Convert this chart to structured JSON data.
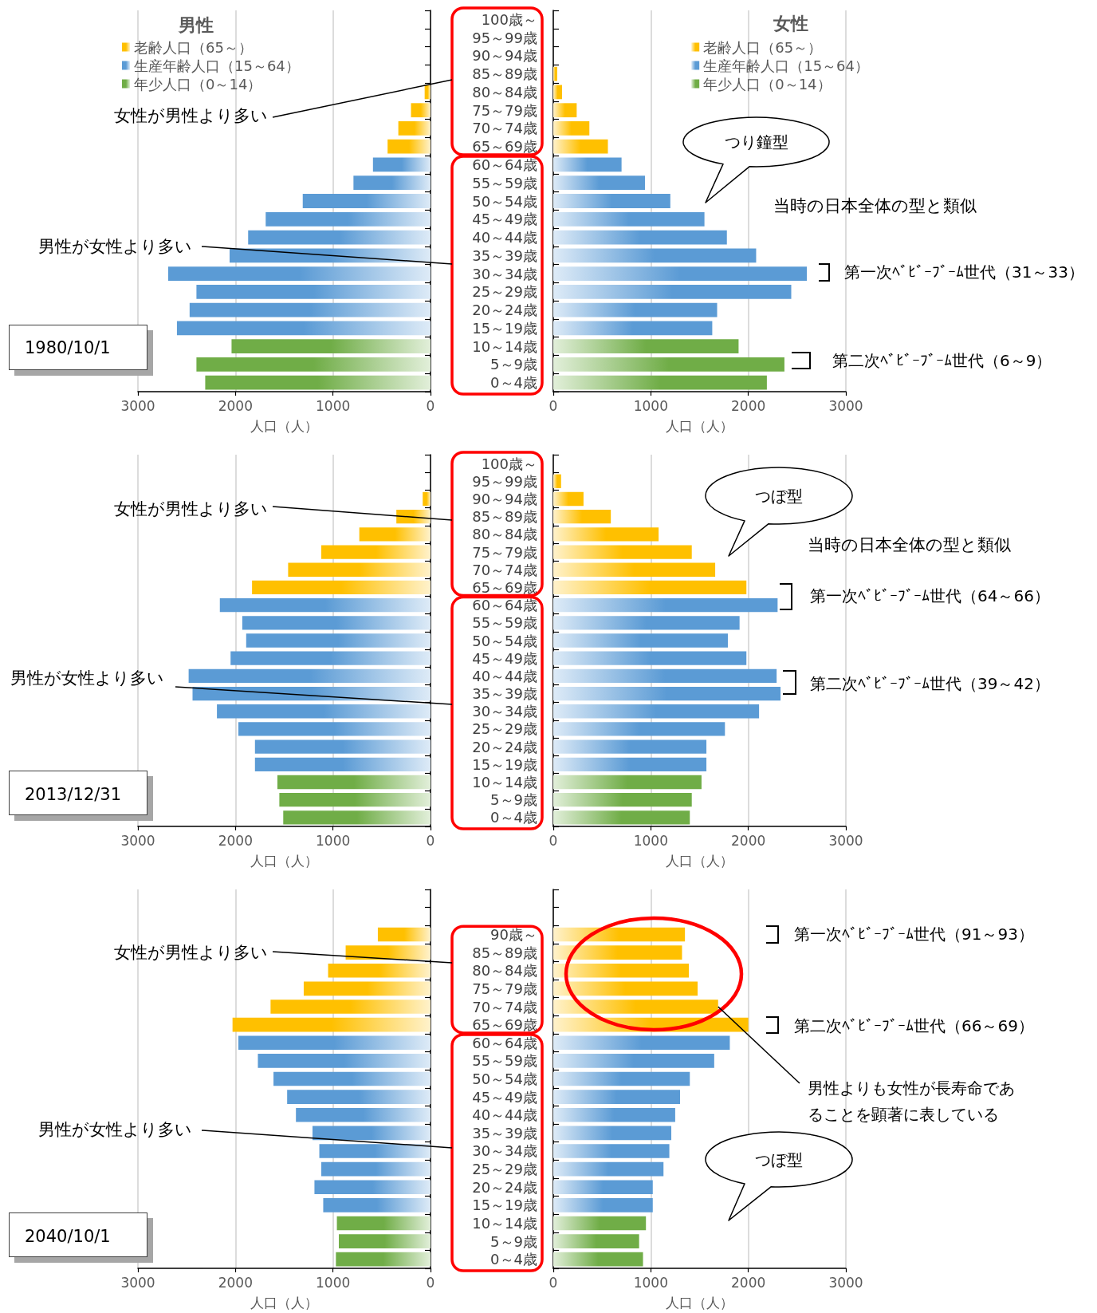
{
  "chart_data": [
    {
      "type": "bar",
      "orientation": "horizontal",
      "stacked": true,
      "title": "男性",
      "xlabel": "人口（人）",
      "xlim": [
        3000,
        0
      ],
      "xticks": [
        3000,
        2000,
        1000,
        0
      ],
      "grid": "x",
      "legend": "top left",
      "categories": [
        "100歳～",
        "95～99歳",
        "90～94歳",
        "85～89歳",
        "80～84歳",
        "75～79歳",
        "70～74歳",
        "65～69歳",
        "60～64歳",
        "55～59歳",
        "50～54歳",
        "45～49歳",
        "40～44歳",
        "35～39歳",
        "30～34歳",
        "25～29歳",
        "20～24歳",
        "15～19歳",
        "10～14歳",
        "5～9歳",
        "0～4歳"
      ],
      "series": [
        {
          "name": "老齢人口（65～）",
          "color": "#ffc000",
          "values": [
            null,
            null,
            null,
            null,
            60,
            200,
            330,
            440,
            null,
            null,
            null,
            null,
            null,
            null,
            null,
            null,
            null,
            null,
            null,
            null,
            null
          ]
        },
        {
          "name": "生産年齢人口（15～64）",
          "color": "#5b9bd5",
          "values": [
            null,
            null,
            null,
            null,
            null,
            null,
            null,
            null,
            590,
            790,
            1310,
            1690,
            1870,
            2060,
            2690,
            2400,
            2470,
            2600,
            null,
            null,
            null
          ]
        },
        {
          "name": "年少人口（0～14）",
          "color": "#70ad47",
          "values": [
            null,
            null,
            null,
            null,
            null,
            null,
            null,
            null,
            null,
            null,
            null,
            null,
            null,
            null,
            null,
            null,
            null,
            null,
            2040,
            2400,
            2310
          ]
        }
      ],
      "annotations": [
        "女性が男性より多い",
        "男性が女性より多い",
        "1980/10/1"
      ]
    },
    {
      "type": "bar",
      "orientation": "horizontal",
      "stacked": true,
      "title": "女性",
      "xlabel": "人口（人）",
      "xlim": [
        0,
        3000
      ],
      "xticks": [
        0,
        1000,
        2000,
        3000
      ],
      "grid": "x",
      "legend": "top right",
      "tick_labels": "x",
      "categories": [
        "100歳～",
        "95～99歳",
        "90～94歳",
        "85～89歳",
        "80～84歳",
        "75～79歳",
        "70～74歳",
        "65～69歳",
        "60～64歳",
        "55～59歳",
        "50～54歳",
        "45～49歳",
        "40～44歳",
        "35～39歳",
        "30～34歳",
        "25～29歳",
        "20～24歳",
        "15～19歳",
        "10～14歳",
        "5～9歳",
        "0～4歳"
      ],
      "series": [
        {
          "name": "老齢人口（65～）",
          "color": "#ffc000",
          "values": [
            null,
            null,
            null,
            40,
            90,
            240,
            370,
            560,
            null,
            null,
            null,
            null,
            null,
            null,
            null,
            null,
            null,
            null,
            null,
            null,
            null
          ]
        },
        {
          "name": "生産年齢人口（15～64）",
          "color": "#5b9bd5",
          "values": [
            null,
            null,
            null,
            null,
            null,
            null,
            null,
            null,
            700,
            940,
            1200,
            1550,
            1780,
            2080,
            2600,
            2440,
            1680,
            1630,
            null,
            null,
            null
          ]
        },
        {
          "name": "年少人口（0～14）",
          "color": "#70ad47",
          "values": [
            null,
            null,
            null,
            null,
            null,
            null,
            null,
            null,
            null,
            null,
            null,
            null,
            null,
            null,
            null,
            null,
            null,
            null,
            1900,
            2370,
            2190
          ]
        }
      ],
      "annotations": [
        "つり鐘型",
        "当時の日本全体の型と類似",
        "第一次ﾍﾞﾋﾞｰﾌﾞｰﾑ世代（31～33）",
        "第二次ﾍﾞﾋﾞｰﾌﾞｰﾑ世代（6～9）"
      ]
    },
    {
      "type": "bar",
      "orientation": "horizontal",
      "stacked": true,
      "xlabel": "人口（人）",
      "xlim": [
        3000,
        0
      ],
      "xticks": [
        3000,
        2000,
        1000,
        0
      ],
      "grid": "x",
      "categories": [
        "100歳～",
        "95～99歳",
        "90～94歳",
        "85～89歳",
        "80～84歳",
        "75～79歳",
        "70～74歳",
        "65～69歳",
        "60～64歳",
        "55～59歳",
        "50～54歳",
        "45～49歳",
        "40～44歳",
        "35～39歳",
        "30～34歳",
        "25～29歳",
        "20～24歳",
        "15～19歳",
        "10～14歳",
        "5～9歳",
        "0～4歳"
      ],
      "series": [
        {
          "color": "#ffc000",
          "values": [
            null,
            null,
            80,
            350,
            730,
            1120,
            1460,
            1830,
            null,
            null,
            null,
            null,
            null,
            null,
            null,
            null,
            null,
            null,
            null,
            null,
            null
          ]
        },
        {
          "color": "#5b9bd5",
          "values": [
            null,
            null,
            null,
            null,
            null,
            null,
            null,
            null,
            2160,
            1930,
            1890,
            2050,
            2480,
            2440,
            2190,
            1970,
            1800,
            1800,
            null,
            null,
            null
          ]
        },
        {
          "color": "#70ad47",
          "values": [
            null,
            null,
            null,
            null,
            null,
            null,
            null,
            null,
            null,
            null,
            null,
            null,
            null,
            null,
            null,
            null,
            null,
            null,
            1570,
            1550,
            1510
          ]
        }
      ],
      "annotations": [
        "女性が男性より多い",
        "男性が女性より多い",
        "2013/12/31"
      ]
    },
    {
      "type": "bar",
      "orientation": "horizontal",
      "stacked": true,
      "xlabel": "人口（人）",
      "xlim": [
        0,
        3000
      ],
      "xticks": [
        0,
        1000,
        2000,
        3000
      ],
      "grid": "x",
      "tick_labels": "x",
      "categories": [
        "100歳～",
        "95～99歳",
        "90～94歳",
        "85～89歳",
        "80～84歳",
        "75～79歳",
        "70～74歳",
        "65～69歳",
        "60～64歳",
        "55～59歳",
        "50～54歳",
        "45～49歳",
        "40～44歳",
        "35～39歳",
        "30～34歳",
        "25～29歳",
        "20～24歳",
        "15～19歳",
        "10～14歳",
        "5～9歳",
        "0～4歳"
      ],
      "series": [
        {
          "color": "#ffc000",
          "values": [
            null,
            80,
            310,
            590,
            1080,
            1420,
            1660,
            1980,
            null,
            null,
            null,
            null,
            null,
            null,
            null,
            null,
            null,
            null,
            null,
            null,
            null
          ]
        },
        {
          "color": "#5b9bd5",
          "values": [
            null,
            null,
            null,
            null,
            null,
            null,
            null,
            null,
            2300,
            1910,
            1790,
            1980,
            2290,
            2330,
            2110,
            1760,
            1570,
            1570,
            null,
            null,
            null
          ]
        },
        {
          "color": "#70ad47",
          "values": [
            null,
            null,
            null,
            null,
            null,
            null,
            null,
            null,
            null,
            null,
            null,
            null,
            null,
            null,
            null,
            null,
            null,
            null,
            1520,
            1420,
            1400
          ]
        }
      ],
      "annotations": [
        "つぼ型",
        "当時の日本全体の型と類似",
        "第一次ﾍﾞﾋﾞｰﾌﾞｰﾑ世代（64～66）",
        "第二次ﾍﾞﾋﾞｰﾌﾞｰﾑ世代（39～42）"
      ]
    },
    {
      "type": "bar",
      "orientation": "horizontal",
      "stacked": true,
      "xlabel": "人口（人）",
      "xlim": [
        3000,
        0
      ],
      "xticks": [
        3000,
        2000,
        1000,
        0
      ],
      "grid": "x",
      "categories": [
        null,
        null,
        "90歳～",
        "85～89歳",
        "80～84歳",
        "75～79歳",
        "70～74歳",
        "65～69歳",
        "60～64歳",
        "55～59歳",
        "50～54歳",
        "45～49歳",
        "40～44歳",
        "35～39歳",
        "30～34歳",
        "25～29歳",
        "20～24歳",
        "15～19歳",
        "10～14歳",
        "5～9歳",
        "0～4歳"
      ],
      "series": [
        {
          "color": "#ffc000",
          "values": [
            null,
            null,
            540,
            870,
            1050,
            1300,
            1640,
            2030,
            null,
            null,
            null,
            null,
            null,
            null,
            null,
            null,
            null,
            null,
            null,
            null,
            null
          ]
        },
        {
          "color": "#5b9bd5",
          "values": [
            null,
            null,
            null,
            null,
            null,
            null,
            null,
            null,
            1970,
            1770,
            1610,
            1470,
            1380,
            1210,
            1140,
            1120,
            1190,
            1100,
            null,
            null,
            null
          ]
        },
        {
          "color": "#70ad47",
          "values": [
            null,
            null,
            null,
            null,
            null,
            null,
            null,
            null,
            null,
            null,
            null,
            null,
            null,
            null,
            null,
            null,
            null,
            null,
            960,
            940,
            970
          ]
        }
      ],
      "annotations": [
        "女性が男性より多い",
        "男性が女性より多い",
        "2040/10/1"
      ]
    },
    {
      "type": "bar",
      "orientation": "horizontal",
      "stacked": true,
      "xlabel": "人口（人）",
      "xlim": [
        0,
        3000
      ],
      "xticks": [
        0,
        1000,
        2000,
        3000
      ],
      "grid": "x",
      "tick_labels": "x",
      "categories": [
        null,
        null,
        "90歳～",
        "85～89歳",
        "80～84歳",
        "75～79歳",
        "70～74歳",
        "65～69歳",
        "60～64歳",
        "55～59歳",
        "50～54歳",
        "45～49歳",
        "40～44歳",
        "35～39歳",
        "30～34歳",
        "25～29歳",
        "20～24歳",
        "15～19歳",
        "10～14歳",
        "5～9歳",
        "0～4歳"
      ],
      "series": [
        {
          "color": "#ffc000",
          "values": [
            null,
            null,
            1350,
            1320,
            1390,
            1480,
            1690,
            2000,
            null,
            null,
            null,
            null,
            null,
            null,
            null,
            null,
            null,
            null,
            null,
            null,
            null
          ]
        },
        {
          "color": "#5b9bd5",
          "values": [
            null,
            null,
            null,
            null,
            null,
            null,
            null,
            null,
            1810,
            1650,
            1400,
            1300,
            1250,
            1210,
            1190,
            1130,
            1020,
            1020,
            null,
            null,
            null
          ]
        },
        {
          "color": "#70ad47",
          "values": [
            null,
            null,
            null,
            null,
            null,
            null,
            null,
            null,
            null,
            null,
            null,
            null,
            null,
            null,
            null,
            null,
            null,
            null,
            950,
            880,
            920
          ]
        }
      ],
      "annotations": [
        "第一次ﾍﾞﾋﾞｰﾌﾞｰﾑ世代（91～93）",
        "第二次ﾍﾞﾋﾞｰﾌﾞｰﾑ世代（66～69）",
        {
          "text": "男性よりも女性が長寿命であることを顕著に表している",
          "x": 1690,
          "y": "70～74歳"
        },
        "つぼ型"
      ]
    }
  ]
}
